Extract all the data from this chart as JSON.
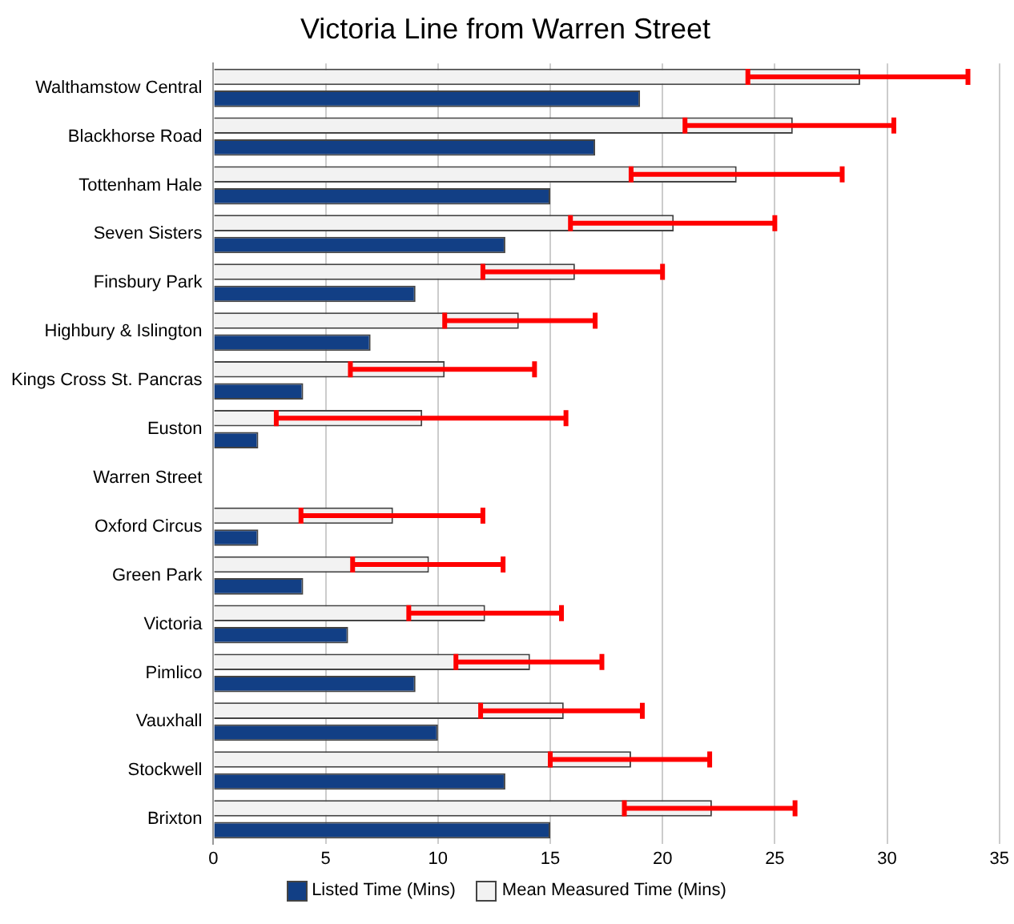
{
  "chart_data": {
    "type": "bar",
    "orientation": "horizontal",
    "title": "Victoria Line from Warren Street",
    "categories": [
      "Walthamstow Central",
      "Blackhorse Road",
      "Tottenham Hale",
      "Seven Sisters",
      "Finsbury Park",
      "Highbury & Islington",
      "Kings Cross St. Pancras",
      "Euston",
      "Warren Street",
      "Oxford Circus",
      "Green Park",
      "Victoria",
      "Pimlico",
      "Vauxhall",
      "Stockwell",
      "Brixton"
    ],
    "series": [
      {
        "name": "Listed Time (Mins)",
        "color": "#123f85",
        "values": [
          19,
          17,
          15,
          13,
          9,
          7,
          4,
          2,
          null,
          2,
          4,
          6,
          9,
          10,
          13,
          15
        ]
      },
      {
        "name": "Mean Measured Time (Mins)",
        "color": "#f2f2f2",
        "values": [
          28.8,
          25.8,
          23.3,
          20.5,
          16.1,
          13.6,
          10.3,
          9.3,
          null,
          8,
          9.6,
          12.1,
          14.1,
          15.6,
          18.6,
          22.2
        ],
        "errors": [
          [
            23.8,
            33.6
          ],
          [
            21,
            30.3
          ],
          [
            18.6,
            28
          ],
          [
            15.9,
            25
          ],
          [
            12,
            20
          ],
          [
            10.3,
            17
          ],
          [
            6.1,
            14.3
          ],
          [
            2.8,
            15.7
          ],
          null,
          [
            3.9,
            12
          ],
          [
            6.2,
            12.9
          ],
          [
            8.7,
            15.5
          ],
          [
            10.8,
            17.3
          ],
          [
            11.9,
            19.1
          ],
          [
            15,
            22.1
          ],
          [
            18.3,
            25.9
          ]
        ]
      }
    ],
    "xlim": [
      0,
      35
    ],
    "xticks": [
      0,
      5,
      10,
      15,
      20,
      25,
      30,
      35
    ],
    "grid": "x",
    "legend": "bottom"
  }
}
